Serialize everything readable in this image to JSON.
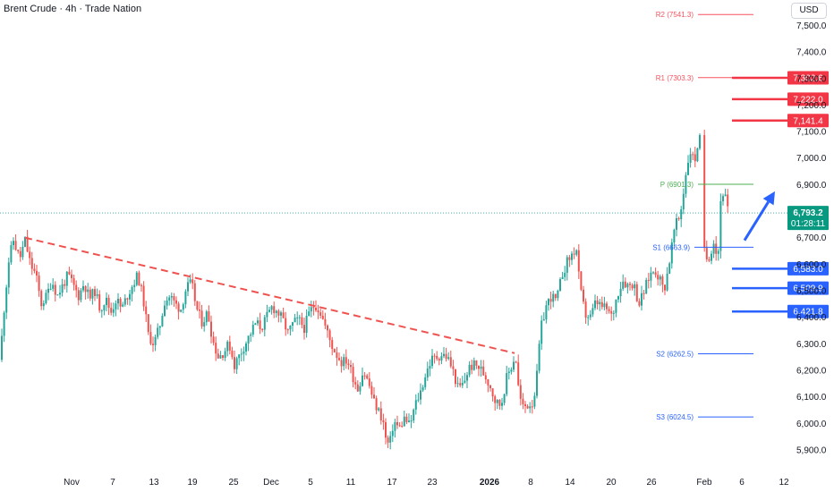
{
  "header": {
    "title": "Brent Crude · 4h · Trade Nation",
    "currency": "USD"
  },
  "chart_data": {
    "type": "candlestick",
    "title": "Brent Crude · 4h · Trade Nation",
    "currency": "USD",
    "y_ticks": [
      5900,
      6000,
      6100,
      6200,
      6300,
      6400,
      6500,
      6600,
      6700,
      6800,
      6900,
      7000,
      7100,
      7200,
      7300,
      7400,
      7500
    ],
    "y_tick_labels": [
      "5,900.0",
      "6,000.0",
      "6,100.0",
      "6,200.0",
      "6,300.0",
      "6,400.0",
      "6,500.0",
      "6,600.0",
      "6,700.0",
      "6,800.0",
      "6,900.0",
      "7,000.0",
      "7,100.0",
      "7,200.0",
      "7,300.0",
      "7,400.0",
      "7,500.0"
    ],
    "ylim": [
      5865,
      7550
    ],
    "x_ticks": [
      {
        "label": "Nov",
        "bold": false
      },
      {
        "label": "7",
        "bold": false
      },
      {
        "label": "13",
        "bold": false
      },
      {
        "label": "19",
        "bold": false
      },
      {
        "label": "25",
        "bold": false
      },
      {
        "label": "Dec",
        "bold": false
      },
      {
        "label": "5",
        "bold": false
      },
      {
        "label": "11",
        "bold": false
      },
      {
        "label": "17",
        "bold": false
      },
      {
        "label": "23",
        "bold": false
      },
      {
        "label": "2026",
        "bold": true
      },
      {
        "label": "8",
        "bold": false
      },
      {
        "label": "14",
        "bold": false
      },
      {
        "label": "20",
        "bold": false
      },
      {
        "label": "26",
        "bold": false
      },
      {
        "label": "Feb",
        "bold": false
      },
      {
        "label": "6",
        "bold": false
      },
      {
        "label": "12",
        "bold": false
      }
    ],
    "price_path": [
      [
        0,
        6240
      ],
      [
        5,
        6450
      ],
      [
        10,
        6620
      ],
      [
        15,
        6690
      ],
      [
        22,
        6620
      ],
      [
        28,
        6690
      ],
      [
        34,
        6600
      ],
      [
        40,
        6560
      ],
      [
        46,
        6450
      ],
      [
        52,
        6480
      ],
      [
        58,
        6540
      ],
      [
        64,
        6480
      ],
      [
        70,
        6520
      ],
      [
        76,
        6560
      ],
      [
        82,
        6520
      ],
      [
        88,
        6480
      ],
      [
        94,
        6530
      ],
      [
        100,
        6470
      ],
      [
        106,
        6500
      ],
      [
        112,
        6430
      ],
      [
        118,
        6470
      ],
      [
        124,
        6420
      ],
      [
        130,
        6470
      ],
      [
        136,
        6430
      ],
      [
        142,
        6480
      ],
      [
        148,
        6520
      ],
      [
        154,
        6560
      ],
      [
        160,
        6470
      ],
      [
        166,
        6330
      ],
      [
        172,
        6300
      ],
      [
        178,
        6360
      ],
      [
        184,
        6460
      ],
      [
        190,
        6480
      ],
      [
        196,
        6450
      ],
      [
        202,
        6430
      ],
      [
        208,
        6510
      ],
      [
        214,
        6530
      ],
      [
        220,
        6430
      ],
      [
        226,
        6380
      ],
      [
        232,
        6420
      ],
      [
        238,
        6310
      ],
      [
        244,
        6250
      ],
      [
        250,
        6270
      ],
      [
        256,
        6300
      ],
      [
        262,
        6220
      ],
      [
        268,
        6260
      ],
      [
        274,
        6300
      ],
      [
        280,
        6340
      ],
      [
        286,
        6380
      ],
      [
        292,
        6360
      ],
      [
        298,
        6400
      ],
      [
        304,
        6440
      ],
      [
        310,
        6420
      ],
      [
        316,
        6390
      ],
      [
        322,
        6340
      ],
      [
        328,
        6380
      ],
      [
        334,
        6390
      ],
      [
        340,
        6360
      ],
      [
        346,
        6420
      ],
      [
        352,
        6450
      ],
      [
        358,
        6420
      ],
      [
        364,
        6360
      ],
      [
        370,
        6300
      ],
      [
        376,
        6260
      ],
      [
        382,
        6230
      ],
      [
        388,
        6240
      ],
      [
        394,
        6180
      ],
      [
        400,
        6130
      ],
      [
        406,
        6200
      ],
      [
        412,
        6150
      ],
      [
        418,
        6080
      ],
      [
        424,
        6040
      ],
      [
        428,
        6010
      ],
      [
        432,
        5920
      ],
      [
        436,
        5930
      ],
      [
        440,
        6010
      ],
      [
        446,
        5980
      ],
      [
        452,
        6020
      ],
      [
        458,
        5990
      ],
      [
        464,
        6070
      ],
      [
        470,
        6120
      ],
      [
        476,
        6190
      ],
      [
        482,
        6240
      ],
      [
        488,
        6250
      ],
      [
        494,
        6260
      ],
      [
        500,
        6250
      ],
      [
        506,
        6200
      ],
      [
        512,
        6130
      ],
      [
        518,
        6150
      ],
      [
        524,
        6210
      ],
      [
        530,
        6220
      ],
      [
        536,
        6210
      ],
      [
        542,
        6180
      ],
      [
        548,
        6140
      ],
      [
        554,
        6080
      ],
      [
        560,
        6070
      ],
      [
        566,
        6170
      ],
      [
        572,
        6220
      ],
      [
        576,
        6260
      ],
      [
        580,
        6110
      ],
      [
        584,
        6060
      ],
      [
        590,
        6070
      ],
      [
        596,
        6080
      ],
      [
        600,
        6180
      ],
      [
        604,
        6350
      ],
      [
        610,
        6440
      ],
      [
        616,
        6480
      ],
      [
        622,
        6460
      ],
      [
        628,
        6560
      ],
      [
        634,
        6610
      ],
      [
        640,
        6640
      ],
      [
        644,
        6660
      ],
      [
        648,
        6510
      ],
      [
        654,
        6410
      ],
      [
        660,
        6400
      ],
      [
        666,
        6460
      ],
      [
        672,
        6440
      ],
      [
        678,
        6430
      ],
      [
        684,
        6400
      ],
      [
        690,
        6490
      ],
      [
        696,
        6540
      ],
      [
        702,
        6520
      ],
      [
        708,
        6530
      ],
      [
        714,
        6450
      ],
      [
        720,
        6500
      ],
      [
        726,
        6560
      ],
      [
        732,
        6580
      ],
      [
        738,
        6540
      ],
      [
        742,
        6500
      ],
      [
        748,
        6610
      ],
      [
        754,
        6740
      ],
      [
        760,
        6780
      ],
      [
        764,
        6880
      ],
      [
        768,
        6980
      ],
      [
        772,
        7030
      ],
      [
        776,
        6980
      ],
      [
        780,
        7060
      ],
      [
        782,
        7070
      ],
      [
        784,
        6870
      ],
      [
        787,
        6650
      ],
      [
        790,
        6620
      ],
      [
        794,
        6640
      ],
      [
        798,
        6700
      ],
      [
        802,
        6600
      ],
      [
        806,
        6880
      ],
      [
        810,
        6860
      ],
      [
        814,
        6790
      ]
    ],
    "trendline": {
      "from": [
        28,
        6700
      ],
      "to": [
        575,
        6265
      ],
      "style": "dashed",
      "color": "#ef5350"
    },
    "pivot_levels": [
      {
        "label": "R2 (7541.3)",
        "value": 7541.3,
        "color": "#f7525f"
      },
      {
        "label": "R1 (7303.3)",
        "value": 7303.3,
        "color": "#f7525f"
      },
      {
        "label": "P (6901.3)",
        "value": 6901.3,
        "color": "#4caf50"
      },
      {
        "label": "S1 (6663.9)",
        "value": 6663.9,
        "color": "#2962ff"
      },
      {
        "label": "S2 (6262.5)",
        "value": 6262.5,
        "color": "#2962ff"
      },
      {
        "label": "S3 (6024.5)",
        "value": 6024.5,
        "color": "#2962ff"
      }
    ],
    "resistance_levels": [
      {
        "label": "7,302.6",
        "value": 7302.6
      },
      {
        "label": "7,222.0",
        "value": 7222.0
      },
      {
        "label": "7,141.4",
        "value": 7141.4
      }
    ],
    "support_levels": [
      {
        "label": "6,583.0",
        "value": 6583.0
      },
      {
        "label": "6,509.9",
        "value": 6509.9
      },
      {
        "label": "6,421.8",
        "value": 6421.8
      }
    ],
    "current_price": {
      "label": "6,793.2",
      "value": 6793.2,
      "countdown": "01:28:11"
    },
    "projection_arrow": {
      "from": [
        832,
        6690
      ],
      "to": [
        866,
        6875
      ],
      "color": "#2962ff"
    }
  }
}
